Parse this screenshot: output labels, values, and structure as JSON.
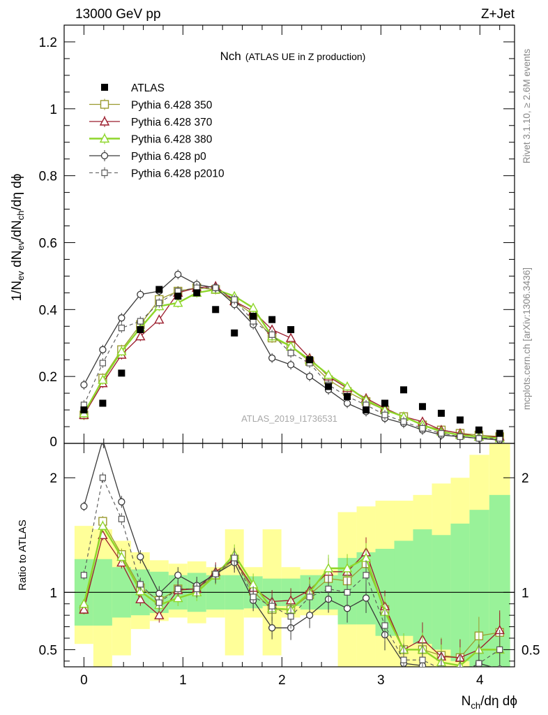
{
  "header": {
    "left": "13000 GeV pp",
    "right": "Z+Jet"
  },
  "side_labels": {
    "rivet": "Rivet 3.1.10, ≥ 2.6M events",
    "mcplots": "mcplots.cern.ch [arXiv:1306.3436]"
  },
  "chart_data": {
    "type": "line",
    "title_main": "Nch",
    "title_sub": "(ATLAS UE in Z production)",
    "watermark": "ATLAS_2019_I1736531",
    "xlabel_base": "N",
    "xlabel_sub": "ch",
    "xlabel_rest": "/dη dϕ",
    "ylabel_parts": [
      "1/N",
      "ev",
      " dN",
      "ev",
      "/dN",
      "ch",
      "/dη dϕ"
    ],
    "ratio_ylabel": "Ratio to ATLAS",
    "xlim": [
      -0.2,
      4.35
    ],
    "ylim": [
      0,
      1.25
    ],
    "ratio_ylim": [
      0.35,
      2.3
    ],
    "x_ticks": [
      0,
      1,
      2,
      3,
      4
    ],
    "y_ticks": [
      0.2,
      0.4,
      0.6,
      0.8,
      1,
      1.2
    ],
    "y_tick_labels": [
      "0.2",
      "0.4",
      "0.6",
      "0.8",
      "1",
      "1.2"
    ],
    "y_zero_label": "0",
    "ratio_ticks": [
      0.5,
      1,
      2
    ],
    "ratio_tick_labels": [
      "0.5",
      "1",
      "2"
    ],
    "x": [
      0,
      0.19,
      0.38,
      0.57,
      0.76,
      0.95,
      1.14,
      1.33,
      1.52,
      1.71,
      1.9,
      2.09,
      2.28,
      2.47,
      2.66,
      2.85,
      3.04,
      3.23,
      3.42,
      3.61,
      3.8,
      3.99,
      4.2
    ],
    "data": {
      "name": "ATLAS",
      "values": [
        0.1,
        0.12,
        0.21,
        0.34,
        0.46,
        0.44,
        0.45,
        0.4,
        0.33,
        0.38,
        0.37,
        0.34,
        0.25,
        0.17,
        0.14,
        0.1,
        0.12,
        0.16,
        0.11,
        0.09,
        0.07,
        0.04,
        0.03
      ]
    },
    "bands": {
      "inner": [
        [
          0.71,
          1.29
        ],
        [
          0.71,
          1.29
        ],
        [
          0.78,
          1.22
        ],
        [
          0.8,
          1.2
        ],
        [
          0.82,
          1.18
        ],
        [
          0.85,
          1.15
        ],
        [
          0.83,
          1.17
        ],
        [
          0.85,
          1.15
        ],
        [
          0.85,
          1.15
        ],
        [
          0.86,
          1.14
        ],
        [
          0.88,
          1.12
        ],
        [
          0.88,
          1.12
        ],
        [
          0.85,
          1.15
        ],
        [
          0.85,
          1.15
        ],
        [
          0.72,
          1.3
        ],
        [
          0.72,
          1.35
        ],
        [
          0.62,
          1.38
        ],
        [
          0.62,
          1.45
        ],
        [
          0.55,
          1.55
        ],
        [
          0.5,
          1.5
        ],
        [
          0.4,
          1.6
        ],
        [
          0.3,
          1.72
        ],
        [
          0.2,
          1.85
        ]
      ],
      "outer": [
        [
          0.55,
          1.58
        ],
        [
          0.3,
          1.55
        ],
        [
          0.45,
          1.45
        ],
        [
          0.68,
          1.35
        ],
        [
          0.75,
          1.28
        ],
        [
          0.78,
          1.25
        ],
        [
          0.73,
          1.27
        ],
        [
          0.78,
          1.22
        ],
        [
          0.45,
          1.55
        ],
        [
          0.78,
          1.22
        ],
        [
          0.45,
          1.55
        ],
        [
          0.78,
          1.22
        ],
        [
          0.8,
          1.2
        ],
        [
          0.8,
          1.2
        ],
        [
          0.35,
          1.7
        ],
        [
          0.35,
          1.75
        ],
        [
          0.35,
          1.8
        ],
        [
          0.35,
          1.8
        ],
        [
          0.35,
          1.85
        ],
        [
          0.35,
          1.95
        ],
        [
          0.35,
          2.0
        ],
        [
          0.35,
          2.2
        ],
        [
          0.35,
          2.3
        ]
      ]
    },
    "series": [
      {
        "name": "Pythia 6.428 350",
        "color": "#9a9a2e",
        "marker": "square-open",
        "dash": "solid",
        "width": 1.3,
        "values": [
          0.085,
          0.195,
          0.28,
          0.355,
          0.43,
          0.455,
          0.465,
          0.46,
          0.425,
          0.385,
          0.315,
          0.29,
          0.245,
          0.19,
          0.155,
          0.125,
          0.1,
          0.08,
          0.055,
          0.04,
          0.03,
          0.025,
          0.02
        ]
      },
      {
        "name": "Pythia 6.428 370",
        "color": "#9b1c2c",
        "marker": "triangle-open",
        "dash": "solid",
        "width": 1.3,
        "values": [
          0.085,
          0.18,
          0.265,
          0.32,
          0.37,
          0.45,
          0.465,
          0.47,
          0.425,
          0.395,
          0.34,
          0.315,
          0.255,
          0.2,
          0.165,
          0.135,
          0.105,
          0.08,
          0.065,
          0.04,
          0.03,
          0.02,
          0.02
        ]
      },
      {
        "name": "Pythia 6.428 380",
        "color": "#8ed62a",
        "marker": "triangle-open",
        "dash": "solid",
        "width": 2.4,
        "values": [
          0.09,
          0.19,
          0.275,
          0.345,
          0.41,
          0.42,
          0.45,
          0.46,
          0.44,
          0.405,
          0.32,
          0.29,
          0.25,
          0.205,
          0.17,
          0.13,
          0.1,
          0.08,
          0.055,
          0.035,
          0.025,
          0.02,
          0.015
        ]
      },
      {
        "name": "Pythia 6.428 p0",
        "color": "#3a3a3a",
        "marker": "circle-open",
        "dash": "solid",
        "width": 1.3,
        "values": [
          0.175,
          0.28,
          0.375,
          0.445,
          0.455,
          0.505,
          0.475,
          0.465,
          0.415,
          0.355,
          0.255,
          0.235,
          0.2,
          0.16,
          0.12,
          0.095,
          0.075,
          0.06,
          0.04,
          0.025,
          0.02,
          0.015,
          0.01
        ]
      },
      {
        "name": "Pythia 6.428 p2010",
        "color": "#555555",
        "marker": "square-small",
        "dash": "dashed",
        "width": 1.1,
        "values": [
          0.115,
          0.24,
          0.345,
          0.365,
          0.42,
          0.455,
          0.465,
          0.465,
          0.43,
          0.365,
          0.325,
          0.27,
          0.24,
          0.175,
          0.14,
          0.115,
          0.085,
          0.065,
          0.045,
          0.03,
          0.02,
          0.015,
          0.015
        ]
      }
    ],
    "ratios": [
      [
        0.85,
        1.62,
        1.33,
        1.04,
        0.93,
        1.03,
        1.03,
        1.15,
        1.29,
        1.01,
        0.85,
        0.85,
        0.98,
        1.12,
        1.1,
        1.25,
        0.85,
        0.5,
        0.5,
        0.45,
        0.43,
        0.62,
        0.65
      ],
      [
        0.85,
        1.5,
        1.26,
        0.94,
        0.8,
        1.02,
        1.03,
        1.18,
        1.29,
        1.04,
        0.92,
        0.93,
        1.02,
        1.18,
        1.18,
        1.35,
        0.88,
        0.5,
        0.59,
        0.44,
        0.43,
        0.5,
        0.67
      ],
      [
        0.9,
        1.58,
        1.31,
        1.01,
        0.89,
        0.95,
        1.0,
        1.15,
        1.33,
        1.07,
        0.86,
        0.85,
        1.0,
        1.21,
        1.21,
        1.3,
        0.83,
        0.5,
        0.5,
        0.39,
        0.36,
        0.5,
        0.5
      ],
      [
        1.75,
        2.33,
        1.79,
        1.31,
        0.99,
        1.15,
        1.06,
        1.16,
        1.26,
        0.93,
        0.69,
        0.69,
        0.8,
        0.94,
        0.86,
        0.95,
        0.63,
        0.38,
        0.36,
        0.28,
        0.29,
        0.38,
        0.33
      ],
      [
        1.15,
        2.0,
        1.64,
        1.07,
        0.91,
        1.03,
        1.03,
        1.16,
        1.3,
        0.96,
        0.88,
        0.79,
        0.96,
        1.03,
        1.0,
        1.15,
        0.71,
        0.41,
        0.41,
        0.33,
        0.29,
        0.38,
        0.5
      ]
    ]
  }
}
